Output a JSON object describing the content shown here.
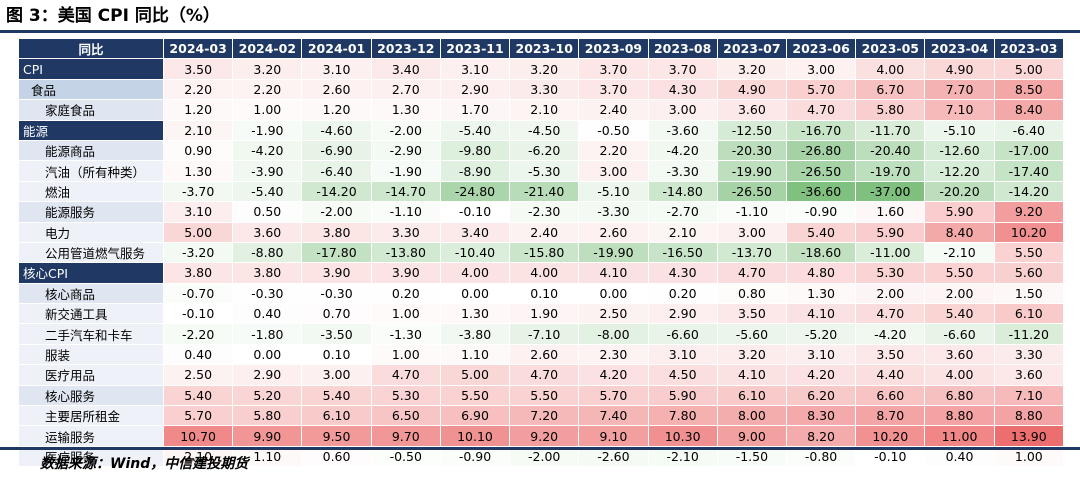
{
  "title": "图 3：美国 CPI 同比（%）",
  "source": "数据来源：Wind，中信建投期货",
  "chart_data": {
    "type": "table",
    "header_label": "同比",
    "columns": [
      "2024-03",
      "2024-02",
      "2024-01",
      "2023-12",
      "2023-11",
      "2023-10",
      "2023-09",
      "2023-08",
      "2023-07",
      "2023-06",
      "2023-05",
      "2023-04",
      "2023-03"
    ],
    "rows": [
      {
        "label": "CPI",
        "level": 0,
        "values": [
          "3.50",
          "3.20",
          "3.10",
          "3.40",
          "3.10",
          "3.20",
          "3.70",
          "3.70",
          "3.20",
          "3.00",
          "4.00",
          "4.90",
          "5.00"
        ],
        "fills": [
          "#fce8e8",
          "#fdeeee",
          "#fdf0f0",
          "#fce9e9",
          "#fdf0f0",
          "#fdeeee",
          "#fce6e6",
          "#fce6e6",
          "#fdeeee",
          "#fdf1f1",
          "#fbe0e0",
          "#fad8d8",
          "#fad6d6"
        ]
      },
      {
        "label": "食品",
        "level": 1,
        "values": [
          "2.20",
          "2.20",
          "2.60",
          "2.70",
          "2.90",
          "3.30",
          "3.70",
          "4.30",
          "4.90",
          "5.70",
          "6.70",
          "7.70",
          "8.50"
        ],
        "fills": [
          "#fdf3f3",
          "#fdf3f3",
          "#fdf1f1",
          "#fdf0f0",
          "#fdefef",
          "#fcebeb",
          "#fce6e6",
          "#fbe1e1",
          "#fad8d8",
          "#f9cfcf",
          "#f7c1c1",
          "#f5b2b2",
          "#f4a7a7"
        ]
      },
      {
        "label": "家庭食品",
        "level": 2,
        "values": [
          "1.20",
          "1.00",
          "1.20",
          "1.30",
          "1.70",
          "2.10",
          "2.40",
          "3.00",
          "3.60",
          "4.70",
          "5.80",
          "7.10",
          "8.40"
        ],
        "fills": [
          "#fef9f9",
          "#fefafa",
          "#fef9f9",
          "#fef8f8",
          "#fdf6f6",
          "#fdf4f4",
          "#fdf2f2",
          "#fdf0f0",
          "#fce8e8",
          "#fbdcdc",
          "#f9cece",
          "#f6baba",
          "#f4a9a9"
        ]
      },
      {
        "label": "能源",
        "level": 0,
        "values": [
          "2.10",
          "-1.90",
          "-4.60",
          "-2.00",
          "-5.40",
          "-4.50",
          "-0.50",
          "-3.60",
          "-12.50",
          "-16.70",
          "-11.70",
          "-5.10",
          "-6.40"
        ],
        "fills": [
          "#fdf4f4",
          "#f7fbf7",
          "#eef7ee",
          "#f6fbf6",
          "#ecf6ec",
          "#eff7ef",
          "#fdfefd",
          "#f2f9f2",
          "#d6ebd6",
          "#c7e4c7",
          "#d8ecd8",
          "#edf6ed",
          "#e8f4e8"
        ]
      },
      {
        "label": "能源商品",
        "level": 2,
        "values": [
          "0.90",
          "-4.20",
          "-6.90",
          "-2.90",
          "-9.80",
          "-6.20",
          "2.20",
          "-4.20",
          "-20.30",
          "-26.80",
          "-20.40",
          "-12.60",
          "-17.00"
        ],
        "fills": [
          "#fefbfb",
          "#f0f8f0",
          "#e7f3e7",
          "#f3f9f3",
          "#ddefdd",
          "#e9f4e9",
          "#fdf3f3",
          "#f0f8f0",
          "#bcdebc",
          "#a4d2a4",
          "#bcdebc",
          "#d6ebd6",
          "#c6e3c6"
        ]
      },
      {
        "label": "汽油（所有种类）",
        "level": 3,
        "values": [
          "1.30",
          "-3.90",
          "-6.40",
          "-1.90",
          "-8.90",
          "-5.30",
          "3.00",
          "-3.30",
          "-19.90",
          "-26.50",
          "-19.70",
          "-12.20",
          "-17.40"
        ],
        "fills": [
          "#fef8f8",
          "#f1f8f1",
          "#e8f4e8",
          "#f7fbf7",
          "#e0f0e0",
          "#ecf6ec",
          "#fdf0f0",
          "#f3f9f3",
          "#bddfbd",
          "#a5d3a5",
          "#bedfbe",
          "#d7ecd7",
          "#c5e3c5"
        ]
      },
      {
        "label": "燃油",
        "level": 3,
        "values": [
          "-3.70",
          "-5.40",
          "-14.20",
          "-14.70",
          "-24.80",
          "-21.40",
          "-5.10",
          "-14.80",
          "-26.50",
          "-36.60",
          "-37.00",
          "-20.20",
          "-14.20"
        ],
        "fills": [
          "#f2f9f2",
          "#ecf6ec",
          "#cfe8cf",
          "#cde7cd",
          "#abd6ab",
          "#b8dcb8",
          "#edf6ed",
          "#cde7cd",
          "#a5d3a5",
          "#80c180",
          "#7fc07f",
          "#bcdebc",
          "#cfe8cf"
        ]
      },
      {
        "label": "能源服务",
        "level": 2,
        "values": [
          "3.10",
          "0.50",
          "-2.00",
          "-1.10",
          "-0.10",
          "-2.30",
          "-3.30",
          "-2.70",
          "-1.10",
          "-0.90",
          "1.60",
          "5.90",
          "9.20"
        ],
        "fills": [
          "#fcedef",
          "#fefdfd",
          "#f6fbf6",
          "#f9fcf9",
          "#fefffe",
          "#f5faf5",
          "#f3f9f3",
          "#f4faf4",
          "#f9fcf9",
          "#fafdfa",
          "#fdf7f7",
          "#f9cdcd",
          "#f39e9e"
        ]
      },
      {
        "label": "电力",
        "level": 3,
        "values": [
          "5.00",
          "3.60",
          "3.80",
          "3.30",
          "3.40",
          "2.40",
          "2.60",
          "2.10",
          "3.00",
          "5.40",
          "5.90",
          "8.40",
          "10.20"
        ],
        "fills": [
          "#fad7d7",
          "#fce8e8",
          "#fce5e5",
          "#fcebeb",
          "#fceaea",
          "#fdf2f2",
          "#fdf1f1",
          "#fdf4f4",
          "#fdf0f0",
          "#fad3d3",
          "#f9cdcd",
          "#f4a9a9",
          "#f19090"
        ]
      },
      {
        "label": "公用管道燃气服务",
        "level": 3,
        "values": [
          "-3.20",
          "-8.80",
          "-17.80",
          "-13.80",
          "-10.40",
          "-15.80",
          "-19.90",
          "-16.50",
          "-13.70",
          "-18.60",
          "-11.00",
          "-2.10",
          "5.50"
        ],
        "fills": [
          "#f3f9f3",
          "#e1f0e1",
          "#c3e2c3",
          "#d1e8d1",
          "#dbeedb",
          "#cae5ca",
          "#bddfbd",
          "#c8e4c8",
          "#d1e8d1",
          "#c0e0c0",
          "#d9edd9",
          "#f6fbf6",
          "#fad2d2"
        ]
      },
      {
        "label": "核心CPI",
        "level": 0,
        "values": [
          "3.80",
          "3.80",
          "3.90",
          "3.90",
          "4.00",
          "4.00",
          "4.10",
          "4.30",
          "4.70",
          "4.80",
          "5.30",
          "5.50",
          "5.60"
        ],
        "fills": [
          "#fce5e5",
          "#fce5e5",
          "#fce4e4",
          "#fce4e4",
          "#fbe3e3",
          "#fbe3e3",
          "#fbe2e2",
          "#fbe1e1",
          "#fbdcdc",
          "#fbdbdb",
          "#fad4d4",
          "#fad2d2",
          "#f9d0d0"
        ]
      },
      {
        "label": "核心商品",
        "level": 2,
        "values": [
          "-0.70",
          "-0.30",
          "-0.30",
          "0.20",
          "0.00",
          "0.10",
          "0.00",
          "0.20",
          "0.80",
          "1.30",
          "2.00",
          "2.00",
          "1.50"
        ],
        "fills": [
          "#fbfdfb",
          "#fdfefd",
          "#fdfefd",
          "#fffefe",
          "#ffffff",
          "#ffffff",
          "#ffffff",
          "#fffefe",
          "#fefbfb",
          "#fef8f8",
          "#fdf5f5",
          "#fdf5f5",
          "#fef7f7"
        ]
      },
      {
        "label": "新交通工具",
        "level": 3,
        "values": [
          "-0.10",
          "0.40",
          "0.70",
          "1.00",
          "1.30",
          "1.90",
          "2.50",
          "2.90",
          "3.50",
          "4.10",
          "4.70",
          "5.40",
          "6.10"
        ],
        "fills": [
          "#fefffe",
          "#fefdfd",
          "#fefcfc",
          "#fefafa",
          "#fef8f8",
          "#fdf5f5",
          "#fdf2f2",
          "#fdefef",
          "#fce8e8",
          "#fbe2e2",
          "#fbdcdc",
          "#fad3d3",
          "#f8caca"
        ]
      },
      {
        "label": "二手汽车和卡车",
        "level": 3,
        "values": [
          "-2.20",
          "-1.80",
          "-3.50",
          "-1.30",
          "-3.80",
          "-7.10",
          "-8.00",
          "-6.60",
          "-5.60",
          "-5.20",
          "-4.20",
          "-6.60",
          "-11.20"
        ],
        "fills": [
          "#f5fbf5",
          "#f7fbf7",
          "#f2f9f2",
          "#f9fcf9",
          "#f1f8f1",
          "#e6f3e6",
          "#e3f1e3",
          "#e8f4e8",
          "#ebf5eb",
          "#edf6ed",
          "#f0f8f0",
          "#e8f4e8",
          "#d9edd9"
        ]
      },
      {
        "label": "服装",
        "level": 3,
        "values": [
          "0.40",
          "0.00",
          "0.10",
          "1.00",
          "1.10",
          "2.60",
          "2.30",
          "3.10",
          "3.20",
          "3.10",
          "3.50",
          "3.60",
          "3.30"
        ],
        "fills": [
          "#fefdfd",
          "#ffffff",
          "#ffffff",
          "#fefafa",
          "#fef9f9",
          "#fdf1f1",
          "#fdf3f3",
          "#fcedef",
          "#fcecec",
          "#fcedef",
          "#fce8e8",
          "#fce8e8",
          "#fcebeb"
        ]
      },
      {
        "label": "医疗用品",
        "level": 3,
        "values": [
          "2.50",
          "2.90",
          "3.00",
          "4.70",
          "5.00",
          "4.70",
          "4.20",
          "4.50",
          "4.10",
          "4.20",
          "4.40",
          "4.00",
          "3.60"
        ],
        "fills": [
          "#fdf2f2",
          "#fdefef",
          "#fdf0f0",
          "#fbdcdc",
          "#fad7d7",
          "#fbdcdc",
          "#fbe1e1",
          "#fbdede",
          "#fbe2e2",
          "#fbe1e1",
          "#fbdfdf",
          "#fbe3e3",
          "#fce8e8"
        ]
      },
      {
        "label": "核心服务",
        "level": 2,
        "values": [
          "5.40",
          "5.20",
          "5.40",
          "5.30",
          "5.50",
          "5.50",
          "5.70",
          "5.90",
          "6.10",
          "6.20",
          "6.60",
          "6.80",
          "7.10"
        ],
        "fills": [
          "#fad3d3",
          "#fad5d5",
          "#fad3d3",
          "#fad4d4",
          "#fad2d2",
          "#fad2d2",
          "#f9cfcf",
          "#f9cdcd",
          "#f8caca",
          "#f8c9c9",
          "#f7c3c3",
          "#f7c0c0",
          "#f6baba"
        ]
      },
      {
        "label": "主要居所租金",
        "level": 3,
        "values": [
          "5.70",
          "5.80",
          "6.10",
          "6.50",
          "6.90",
          "7.20",
          "7.40",
          "7.80",
          "8.00",
          "8.30",
          "8.70",
          "8.80",
          "8.80"
        ],
        "fills": [
          "#f9cfcf",
          "#f9cece",
          "#f8caca",
          "#f7c5c5",
          "#f7bfbf",
          "#f6b9b9",
          "#f5b6b6",
          "#f5b0b0",
          "#f4adad",
          "#f4aaaa",
          "#f3a4a4",
          "#f3a3a3",
          "#f3a3a3"
        ]
      },
      {
        "label": "运输服务",
        "level": 3,
        "values": [
          "10.70",
          "9.90",
          "9.50",
          "9.70",
          "10.10",
          "9.20",
          "9.10",
          "10.30",
          "9.00",
          "8.20",
          "10.20",
          "11.00",
          "13.90"
        ],
        "fills": [
          "#f08a8a",
          "#f19595",
          "#f29a9a",
          "#f29797",
          "#f19292",
          "#f39e9e",
          "#f39f9f",
          "#f19090",
          "#f3a0a0",
          "#f4abab",
          "#f19191",
          "#f08686",
          "#ec6e6e"
        ]
      },
      {
        "label": "医疗服务",
        "level": 3,
        "values": [
          "2.10",
          "1.10",
          "0.60",
          "-0.50",
          "-0.90",
          "-2.00",
          "-2.60",
          "-2.10",
          "-1.50",
          "-0.80",
          "-0.10",
          "0.40",
          "1.00"
        ],
        "fills": [
          "#fdf4f4",
          "#fef9f9",
          "#fefcfc",
          "#fcfefc",
          "#fafdfa",
          "#f6fbf6",
          "#f5faf5",
          "#f5fbf5",
          "#f8fcf8",
          "#fbfdfb",
          "#fefffe",
          "#fefdfd",
          "#fefafa"
        ]
      }
    ]
  }
}
